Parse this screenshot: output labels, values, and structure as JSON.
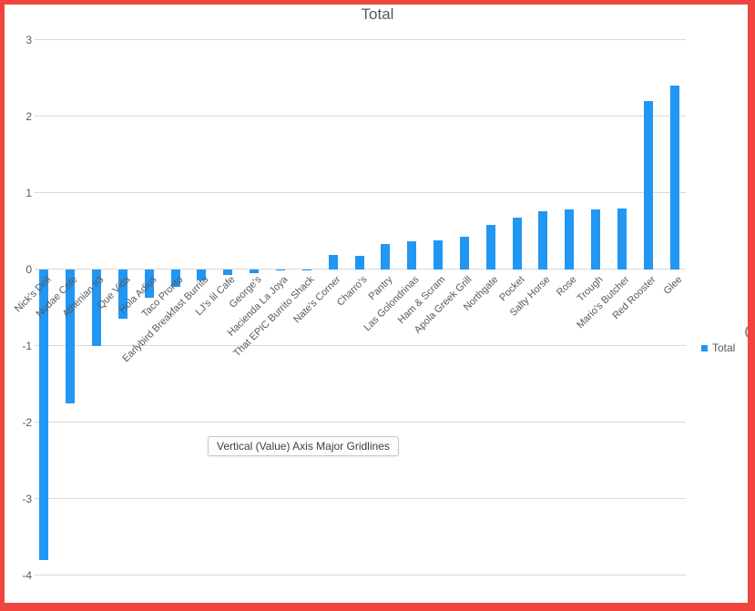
{
  "frame": {
    "border_color": "#f0453f"
  },
  "chart": {
    "title": "Total",
    "legend": {
      "label": "Total",
      "marker_color": "#2196f3"
    },
    "tooltip": "Vertical (Value) Axis Major Gridlines"
  },
  "chart_data": {
    "type": "bar",
    "title": "Total",
    "categories": [
      "Nick's Deli",
      "Nudae Cafe",
      "Athenian #3",
      "Que Vida",
      "Hola Adios",
      "Taco Pronto",
      "Earlybird Breakfast Burrito",
      "LJ's lil Cafe",
      "George's",
      "Hacienda La Joya",
      "That EPIC Burrito Shack",
      "Nate's Corner",
      "Charro's",
      "Pantry",
      "Las Golondrinas",
      "Ham & Scram",
      "Apola Greek Grill",
      "Northgate",
      "Pocket",
      "Salty Horse",
      "Rose",
      "Trough",
      "Mario's Butcher",
      "Red Rooster",
      "Glee"
    ],
    "series": [
      {
        "name": "Total",
        "values": [
          -3.8,
          -1.75,
          -1.0,
          -0.65,
          -0.37,
          -0.23,
          -0.15,
          -0.08,
          -0.05,
          -0.02,
          -0.01,
          0.19,
          0.18,
          0.33,
          0.37,
          0.38,
          0.43,
          0.58,
          0.67,
          0.76,
          0.78,
          0.78,
          0.79,
          2.2,
          2.4
        ]
      }
    ],
    "xlabel": "",
    "ylabel": "",
    "ylim": [
      -4,
      3
    ],
    "yticks": [
      3,
      2,
      1,
      0,
      -1,
      -2,
      -3,
      -4
    ],
    "grid": "horizontal",
    "legend_position": "right",
    "bar_color": "#2196f3",
    "gridline_color": "#d9d9d9",
    "text_color": "#595959"
  }
}
